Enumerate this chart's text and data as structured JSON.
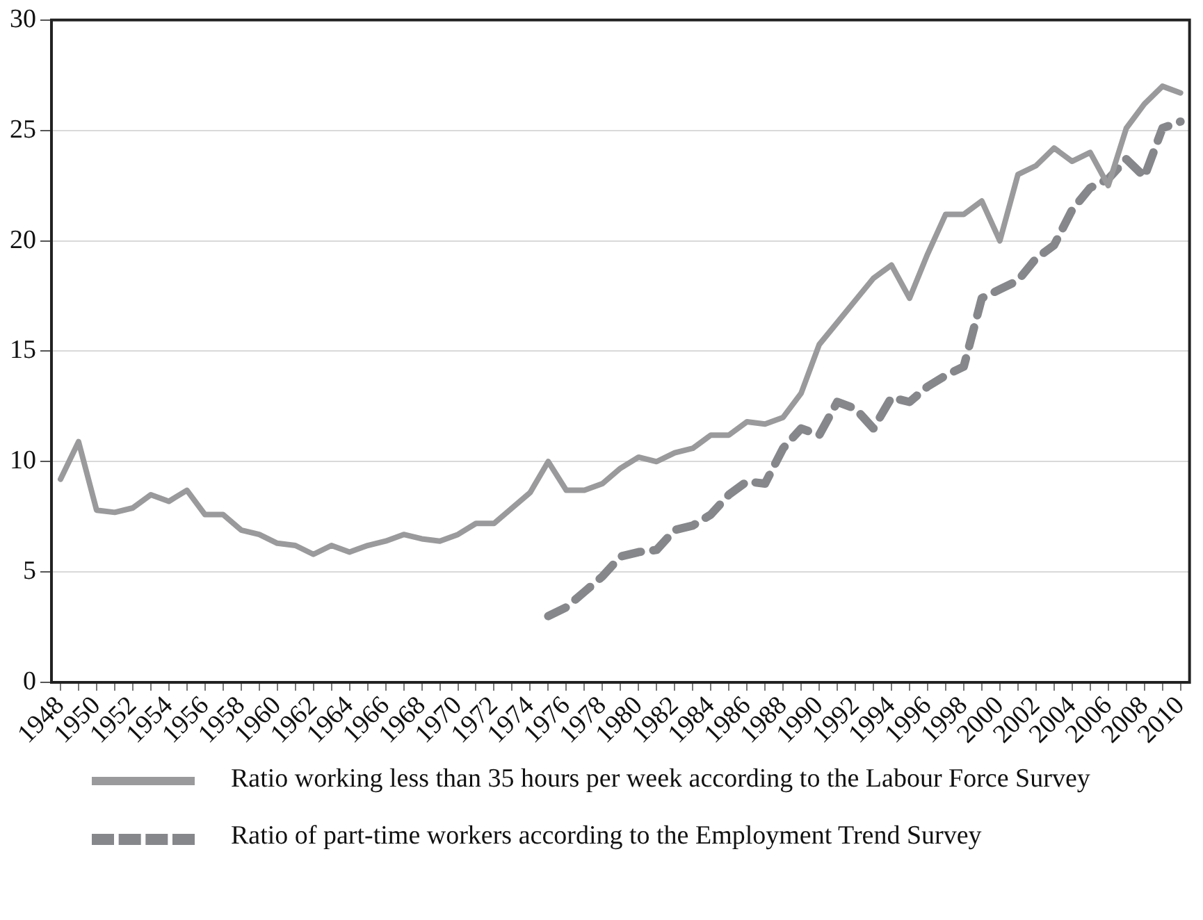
{
  "chart_data": {
    "type": "line",
    "categories": [
      "1948",
      null,
      "1950",
      null,
      "1952",
      null,
      "1954",
      null,
      "1956",
      null,
      "1958",
      null,
      "1960",
      null,
      "1962",
      null,
      "1964",
      null,
      "1966",
      null,
      "1968",
      null,
      "1970",
      null,
      "1972",
      null,
      "1974",
      null,
      "1976",
      null,
      "1978",
      null,
      "1980",
      null,
      "1982",
      null,
      "1984",
      null,
      "1986",
      null,
      "1988",
      null,
      "1990",
      null,
      "1992",
      null,
      "1994",
      null,
      "1996",
      null,
      "1998",
      null,
      "2000",
      null,
      "2002",
      null,
      "2004",
      null,
      "2006",
      null,
      "2008",
      null,
      "2010"
    ],
    "series": [
      {
        "name": "Ratio working less than 35 hours per week according to the Labour Force Survey",
        "color": "#9a9a9c",
        "line_style": "solid",
        "values": [
          9.2,
          10.9,
          7.8,
          7.7,
          7.9,
          8.5,
          8.2,
          8.7,
          7.6,
          7.6,
          6.9,
          6.7,
          6.3,
          6.2,
          5.8,
          6.2,
          5.9,
          6.2,
          6.4,
          6.7,
          6.5,
          6.4,
          6.7,
          7.2,
          7.2,
          7.9,
          8.6,
          10.0,
          8.7,
          8.7,
          9.0,
          9.7,
          10.2,
          10.0,
          10.4,
          10.6,
          11.2,
          11.2,
          11.8,
          11.7,
          12.0,
          13.1,
          15.3,
          16.3,
          17.3,
          18.3,
          18.9,
          17.4,
          19.4,
          21.2,
          21.2,
          21.8,
          20.0,
          23.0,
          23.4,
          24.2,
          23.6,
          24.0,
          22.5,
          25.1,
          26.2,
          27.0,
          26.7
        ]
      },
      {
        "name": "Ratio of part-time workers according to the Employment Trend Survey",
        "color": "#86878b",
        "line_style": "dashed",
        "values": [
          null,
          null,
          null,
          null,
          null,
          null,
          null,
          null,
          null,
          null,
          null,
          null,
          null,
          null,
          null,
          null,
          null,
          null,
          null,
          null,
          null,
          null,
          null,
          null,
          null,
          null,
          null,
          3.0,
          3.4,
          4.1,
          4.8,
          5.7,
          5.9,
          6.0,
          6.9,
          7.1,
          7.6,
          8.5,
          9.1,
          9.0,
          10.6,
          11.5,
          11.2,
          12.7,
          12.4,
          11.5,
          12.9,
          12.7,
          13.4,
          13.9,
          14.3,
          17.4,
          17.8,
          18.2,
          19.2,
          19.8,
          21.4,
          22.4,
          22.8,
          23.7,
          22.9,
          25.1,
          25.4
        ]
      }
    ],
    "ylim": [
      0,
      30
    ],
    "yticks": [
      0,
      5,
      10,
      15,
      20,
      25,
      30
    ],
    "grid": "y",
    "legend": "bottom"
  }
}
